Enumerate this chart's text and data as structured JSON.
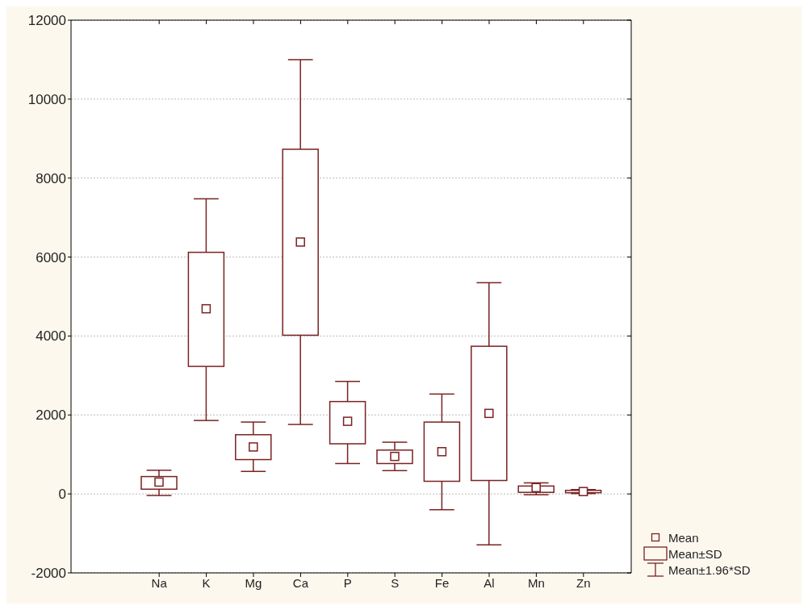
{
  "chart_data": {
    "type": "box",
    "categories": [
      "Na",
      "K",
      "Mg",
      "Ca",
      "P",
      "S",
      "Fe",
      "Al",
      "Mn",
      "Zn"
    ],
    "color": "#7a2222",
    "boxes": [
      {
        "low": -40,
        "q1": 120,
        "q3": 440,
        "high": 600,
        "mean": 300
      },
      {
        "low": 1860,
        "q1": 3230,
        "q3": 6120,
        "high": 7475,
        "mean": 4690
      },
      {
        "low": 570,
        "q1": 870,
        "q3": 1500,
        "high": 1820,
        "mean": 1190
      },
      {
        "low": 1760,
        "q1": 4020,
        "q3": 8730,
        "high": 11000,
        "mean": 6380
      },
      {
        "low": 770,
        "q1": 1270,
        "q3": 2340,
        "high": 2850,
        "mean": 1840
      },
      {
        "low": 590,
        "q1": 770,
        "q3": 1110,
        "high": 1310,
        "mean": 950
      },
      {
        "low": -400,
        "q1": 320,
        "q3": 1820,
        "high": 2530,
        "mean": 1070
      },
      {
        "low": -1290,
        "q1": 340,
        "q3": 3740,
        "high": 5350,
        "mean": 2040
      },
      {
        "low": -20,
        "q1": 40,
        "q3": 200,
        "high": 280,
        "mean": 160
      },
      {
        "low": 10,
        "q1": 30,
        "q3": 90,
        "high": 110,
        "mean": 60
      }
    ],
    "ylim": [
      -2000,
      12000
    ],
    "yticks": [
      -2000,
      0,
      2000,
      4000,
      6000,
      8000,
      10000,
      12000
    ],
    "grid": "y",
    "annotations": [
      "Mean",
      "Mean±SD",
      "Mean±1.96*SD"
    ]
  }
}
